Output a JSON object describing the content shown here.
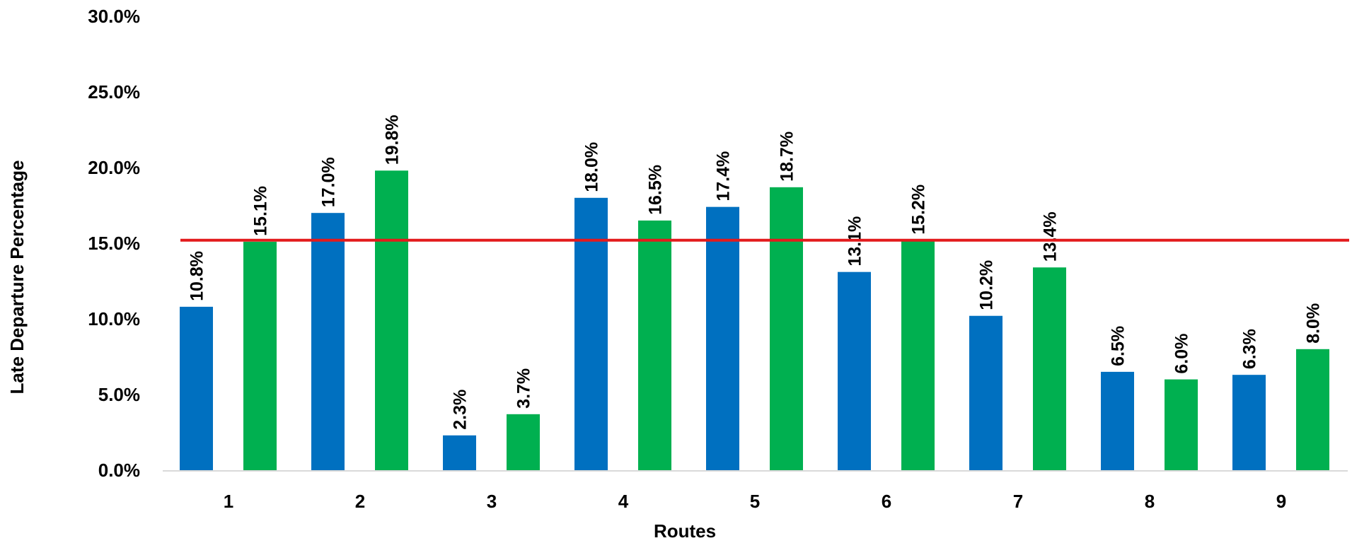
{
  "chart_data": {
    "type": "bar",
    "title": "",
    "xlabel": "Routes",
    "ylabel": "Late Departure Percentage",
    "categories": [
      "1",
      "2",
      "3",
      "4",
      "5",
      "6",
      "7",
      "8",
      "9"
    ],
    "series": [
      {
        "color": "#0070C0",
        "values": [
          10.8,
          17.0,
          2.3,
          18.0,
          17.4,
          13.1,
          10.2,
          6.5,
          6.3
        ],
        "labels": [
          "10.8%",
          "17.0%",
          "2.3%",
          "18.0%",
          "17.4%",
          "13.1%",
          "10.2%",
          "6.5%",
          "6.3%"
        ]
      },
      {
        "color": "#00B050",
        "values": [
          15.1,
          19.8,
          3.7,
          16.5,
          18.7,
          15.2,
          13.4,
          6.0,
          8.0
        ],
        "labels": [
          "15.1%",
          "19.8%",
          "3.7%",
          "16.5%",
          "18.7%",
          "15.2%",
          "13.4%",
          "6.0%",
          "8.0%"
        ]
      }
    ],
    "ylim": [
      0,
      30
    ],
    "yticks": [
      0,
      5,
      10,
      15,
      20,
      25,
      30
    ],
    "ytick_labels": [
      "0.0%",
      "5.0%",
      "10.0%",
      "15.0%",
      "20.0%",
      "25.0%",
      "30.0%"
    ],
    "reference_line": {
      "value": 15.2,
      "color": "#E31A1C"
    },
    "grid": false,
    "legend": "none"
  }
}
